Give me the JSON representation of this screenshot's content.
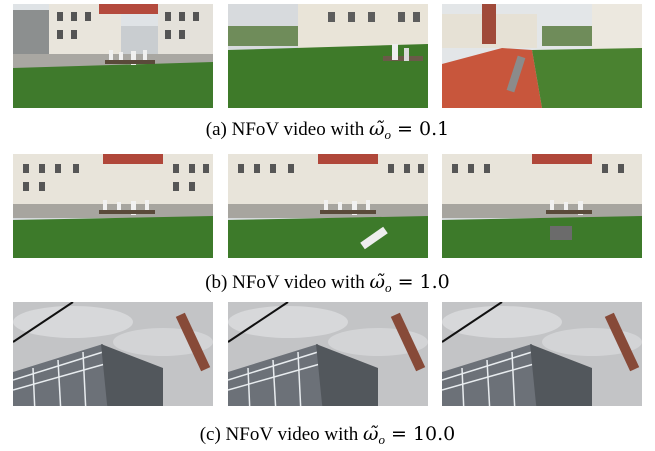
{
  "figure": {
    "rows": [
      {
        "caption": {
          "prefix": "(a) NFoV video with ",
          "symbol": "ω̃",
          "subscript": "o",
          "equals": " = ",
          "value": "0.1"
        }
      },
      {
        "caption": {
          "prefix": "(b) NFoV video with ",
          "symbol": "ω̃",
          "subscript": "o",
          "equals": " = ",
          "value": "1.0"
        }
      },
      {
        "caption": {
          "prefix": "(c) NFoV video with ",
          "symbol": "ω̃",
          "subscript": "o",
          "equals": " = ",
          "value": "10.0"
        }
      }
    ]
  }
}
